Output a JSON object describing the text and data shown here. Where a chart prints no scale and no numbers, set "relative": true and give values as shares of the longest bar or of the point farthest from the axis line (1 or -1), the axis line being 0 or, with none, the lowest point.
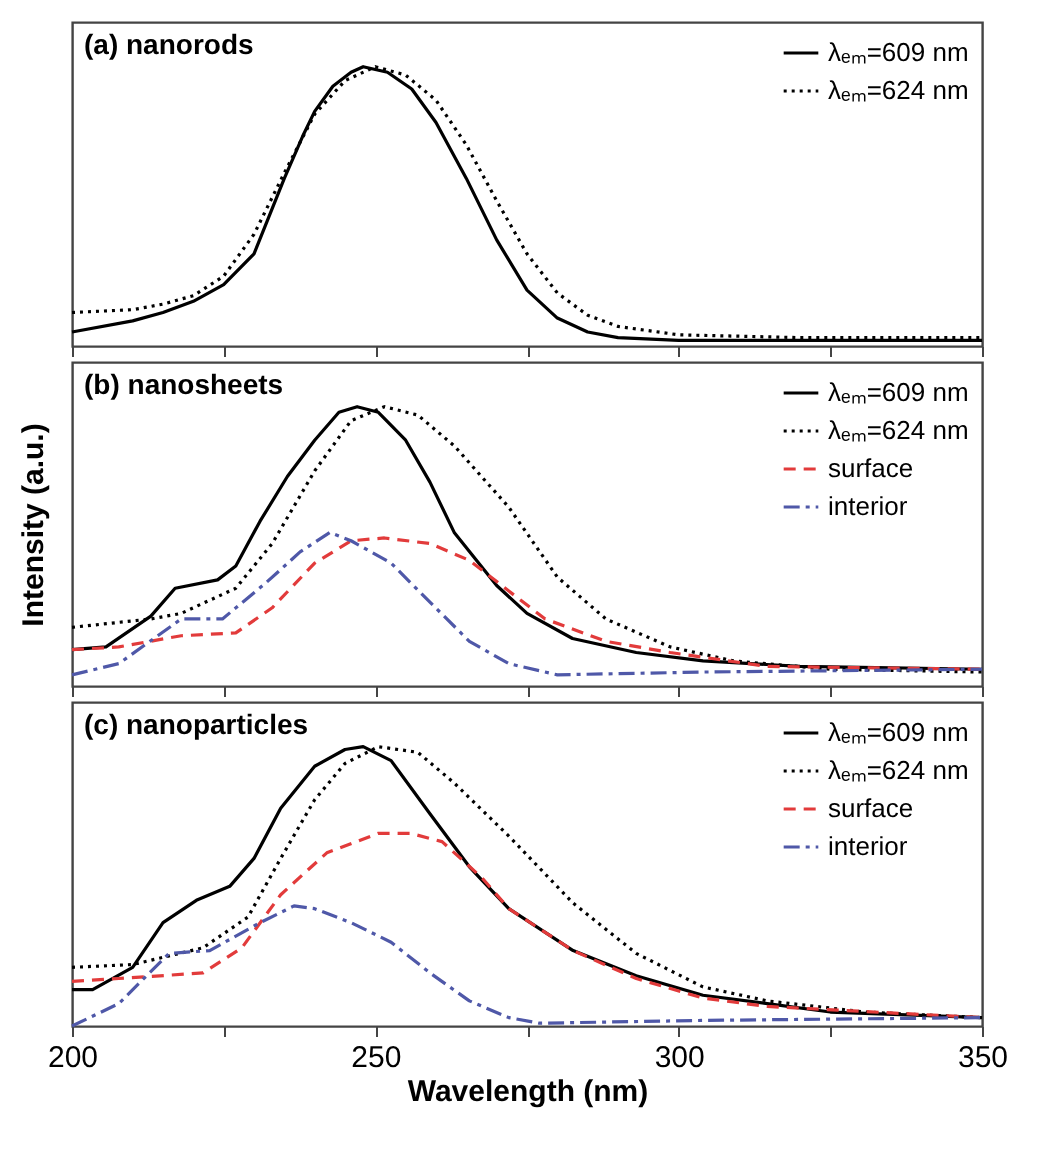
{
  "chart_data": [
    {
      "type": "line",
      "title": "(a) nanorods",
      "relative": true,
      "xlim": [
        200,
        350
      ],
      "xticks": [
        200,
        {
          "value": 225,
          "label": null
        },
        250,
        {
          "value": 275,
          "label": null
        },
        300,
        {
          "value": 325,
          "label": null
        },
        350
      ],
      "tick_labels": false,
      "legend": "top right",
      "series": [
        {
          "name": "λₑₘ=609 nm",
          "color": "#000000",
          "line_style": "solid",
          "x": [
            200,
            210,
            215,
            220,
            225,
            230,
            235,
            238,
            240,
            243,
            246,
            248,
            252,
            256,
            260,
            265,
            270,
            275,
            280,
            285,
            290,
            300,
            320,
            350
          ],
          "values": [
            0.05,
            0.09,
            0.12,
            0.16,
            0.22,
            0.33,
            0.6,
            0.75,
            0.84,
            0.93,
            0.98,
            1.0,
            0.98,
            0.92,
            0.8,
            0.6,
            0.38,
            0.2,
            0.1,
            0.05,
            0.03,
            0.02,
            0.02,
            0.02
          ]
        },
        {
          "name": "λₑₘ=624 nm",
          "color": "#000000",
          "line_style": "dotted",
          "x": [
            200,
            210,
            215,
            220,
            225,
            230,
            235,
            240,
            245,
            250,
            255,
            260,
            265,
            270,
            275,
            280,
            285,
            290,
            300,
            320,
            350
          ],
          "values": [
            0.12,
            0.13,
            0.15,
            0.18,
            0.25,
            0.4,
            0.62,
            0.83,
            0.95,
            1.0,
            0.97,
            0.88,
            0.72,
            0.52,
            0.33,
            0.19,
            0.11,
            0.07,
            0.04,
            0.03,
            0.03
          ]
        }
      ]
    },
    {
      "type": "line",
      "title": "(b) nanosheets",
      "ylabel": "Intensity (a.u.)",
      "relative": true,
      "xlim": [
        200,
        350
      ],
      "xticks": [
        200,
        {
          "value": 225,
          "label": null
        },
        250,
        {
          "value": 275,
          "label": null
        },
        300,
        {
          "value": 325,
          "label": null
        },
        350
      ],
      "tick_labels": false,
      "legend": "top right",
      "series": [
        {
          "name": "λₑₘ=609 nm",
          "color": "#000000",
          "line_style": "solid",
          "x": [
            200,
            205.6,
            213,
            217,
            224,
            227,
            231,
            235.5,
            240,
            244,
            247,
            250.5,
            255,
            259,
            263,
            270,
            275,
            282.5,
            293,
            304,
            320,
            350
          ],
          "values": [
            0.13,
            0.14,
            0.25,
            0.35,
            0.38,
            0.43,
            0.59,
            0.75,
            0.88,
            0.98,
            1.0,
            0.98,
            0.88,
            0.73,
            0.55,
            0.36,
            0.26,
            0.17,
            0.12,
            0.09,
            0.07,
            0.06
          ]
        },
        {
          "name": "λₑₘ=624 nm",
          "color": "#000000",
          "line_style": "dotted",
          "x": [
            200,
            213,
            218,
            227,
            233,
            240,
            246,
            251.5,
            257,
            263,
            272,
            280,
            288,
            298.6,
            309,
            325,
            350
          ],
          "values": [
            0.21,
            0.24,
            0.26,
            0.35,
            0.51,
            0.77,
            0.95,
            1.0,
            0.97,
            0.86,
            0.64,
            0.39,
            0.24,
            0.14,
            0.09,
            0.06,
            0.05
          ]
        },
        {
          "name": "surface",
          "color": "#e23b3b",
          "line_style": "dashed",
          "x": [
            200,
            207.7,
            218,
            227,
            233,
            240,
            246,
            251.5,
            259,
            265.5,
            272,
            278,
            288,
            298.6,
            314.6,
            350
          ],
          "values": [
            0.13,
            0.14,
            0.18,
            0.19,
            0.28,
            0.44,
            0.52,
            0.53,
            0.51,
            0.45,
            0.34,
            0.24,
            0.16,
            0.12,
            0.07,
            0.06
          ]
        },
        {
          "name": "interior",
          "color": "#4f58a8",
          "line_style": "dashdot",
          "x": [
            200,
            207.7,
            218,
            224.8,
            232,
            237.6,
            242.5,
            246,
            252.6,
            259,
            265.5,
            272,
            280,
            304,
            350
          ],
          "values": [
            0.04,
            0.08,
            0.24,
            0.24,
            0.37,
            0.48,
            0.55,
            0.52,
            0.44,
            0.3,
            0.16,
            0.08,
            0.04,
            0.05,
            0.06
          ]
        }
      ]
    },
    {
      "type": "line",
      "title": "(c) nanoparticles",
      "xlabel": "Wavelength (nm)",
      "relative": true,
      "xlim": [
        200,
        350
      ],
      "xticks": [
        200,
        {
          "value": 225,
          "label": null
        },
        250,
        {
          "value": 275,
          "label": null
        },
        300,
        {
          "value": 325,
          "label": null
        },
        350
      ],
      "legend": "top right",
      "series": [
        {
          "name": "λₑₘ=609 nm",
          "color": "#000000",
          "line_style": "solid",
          "x": [
            200,
            203.4,
            210,
            215,
            220.5,
            226,
            230,
            234.4,
            240,
            245,
            248,
            252.6,
            259,
            265.5,
            272,
            282.6,
            293,
            304,
            314.6,
            325,
            350
          ],
          "values": [
            0.13,
            0.13,
            0.21,
            0.37,
            0.45,
            0.5,
            0.6,
            0.78,
            0.93,
            0.99,
            1.0,
            0.95,
            0.76,
            0.57,
            0.42,
            0.27,
            0.18,
            0.11,
            0.08,
            0.05,
            0.03
          ]
        },
        {
          "name": "λₑₘ=624 nm",
          "color": "#000000",
          "line_style": "dotted",
          "x": [
            200,
            210,
            221.6,
            229,
            234.4,
            240,
            245,
            250.5,
            257,
            263,
            272,
            282.6,
            293,
            304,
            314.6,
            330.7,
            350
          ],
          "values": [
            0.21,
            0.22,
            0.28,
            0.39,
            0.6,
            0.81,
            0.94,
            1.0,
            0.98,
            0.87,
            0.68,
            0.44,
            0.26,
            0.14,
            0.09,
            0.05,
            0.03
          ]
        },
        {
          "name": "surface",
          "color": "#e23b3b",
          "line_style": "dashed",
          "x": [
            200,
            207.7,
            221.6,
            228,
            234.4,
            242,
            250.5,
            255.8,
            261,
            267.6,
            272,
            282.6,
            293,
            304,
            314.6,
            350
          ],
          "values": [
            0.16,
            0.17,
            0.19,
            0.28,
            0.47,
            0.62,
            0.69,
            0.69,
            0.66,
            0.53,
            0.42,
            0.27,
            0.17,
            0.1,
            0.07,
            0.03
          ]
        },
        {
          "name": "interior",
          "color": "#4f58a8",
          "line_style": "dashdot",
          "x": [
            200,
            207.7,
            216,
            222.7,
            231,
            236.6,
            240,
            246,
            252.6,
            259,
            265.5,
            272,
            277,
            304,
            350
          ],
          "values": [
            0.0,
            0.08,
            0.26,
            0.27,
            0.37,
            0.43,
            0.42,
            0.37,
            0.3,
            0.19,
            0.09,
            0.03,
            0.01,
            0.02,
            0.03
          ]
        }
      ]
    }
  ]
}
